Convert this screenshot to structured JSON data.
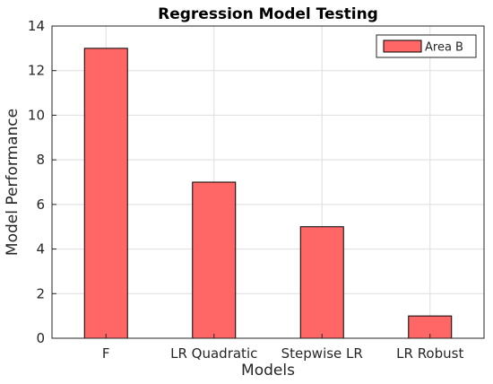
{
  "chart_data": {
    "type": "bar",
    "title": "Regression Model Testing",
    "xlabel": "Models",
    "ylabel": "Model Performance",
    "categories": [
      "F",
      "LR Quadratic",
      "Stepwise LR",
      "LR Robust"
    ],
    "series": [
      {
        "name": "Area B",
        "values": [
          13,
          7,
          5,
          1
        ],
        "color": "#ff6666",
        "edge_color": "#000000"
      }
    ],
    "ylim": [
      0,
      14
    ],
    "yticks": [
      0,
      2,
      4,
      6,
      8,
      10,
      12,
      14
    ],
    "grid": true,
    "legend_position": "top-right"
  }
}
